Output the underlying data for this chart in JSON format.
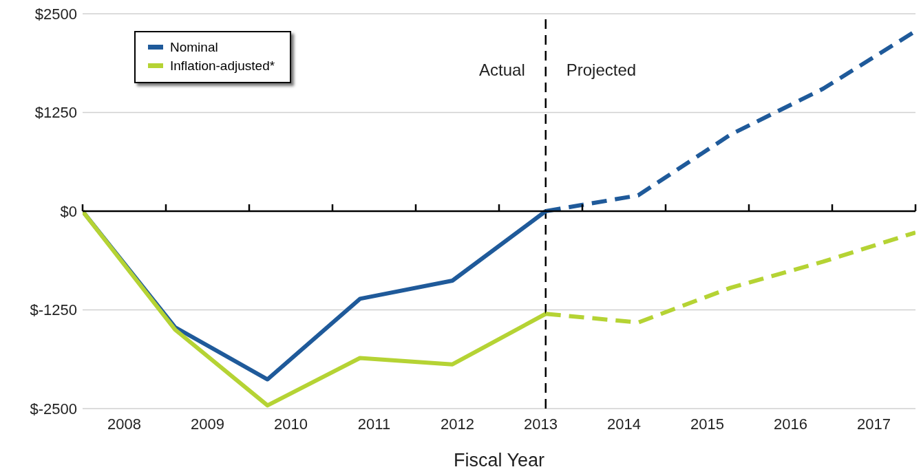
{
  "chart_data": {
    "type": "line",
    "xlabel": "Fiscal Year",
    "xlim": [
      2007.5,
      2017.5
    ],
    "xticks": [
      {
        "value": 2007.5,
        "label": null
      },
      2008,
      {
        "value": 2008.5,
        "label": null
      },
      2009,
      {
        "value": 2009.5,
        "label": null
      },
      2010,
      {
        "value": 2010.5,
        "label": null
      },
      2011,
      {
        "value": 2011.5,
        "label": null
      },
      2012,
      {
        "value": 2012.5,
        "label": null
      },
      2013,
      {
        "value": 2013.5,
        "label": null
      },
      2014,
      {
        "value": 2014.5,
        "label": null
      },
      2015,
      {
        "value": 2015.5,
        "label": null
      },
      2016,
      {
        "value": 2016.5,
        "label": null
      },
      2017,
      {
        "value": 2017.5,
        "label": null
      }
    ],
    "ylim": [
      -2500,
      2500
    ],
    "yticks": [
      {
        "value": -2500,
        "label": "$-2500"
      },
      {
        "value": -1250,
        "label": "$-1250"
      },
      {
        "value": 0,
        "label": "$0"
      },
      {
        "value": 1250,
        "label": "$1250"
      },
      {
        "value": 2500,
        "label": "$2500"
      }
    ],
    "grid": "y",
    "legend": "top left",
    "marker": "none",
    "series": [
      {
        "name": "Nominal",
        "color": "#1f5a9a",
        "line_style": "solid",
        "x": [
          2007.5,
          2008.61,
          2009.72,
          2010.83,
          2011.94,
          2013.06
        ],
        "values": [
          0,
          -1470,
          -2130,
          -1110,
          -880,
          0
        ]
      },
      {
        "color": "#1f5a9a",
        "line_style": "dashed",
        "x": [
          2013.06,
          2014.17,
          2015.28,
          2016.39,
          2017.5
        ],
        "values": [
          0,
          200,
          970,
          1550,
          2280
        ]
      },
      {
        "name": "Inflation-adjusted*",
        "color": "#b5d334",
        "line_style": "solid",
        "x": [
          2007.5,
          2008.61,
          2009.72,
          2010.83,
          2011.94,
          2013.06
        ],
        "values": [
          0,
          -1500,
          -2460,
          -1860,
          -1940,
          -1300
        ]
      },
      {
        "color": "#b5d334",
        "line_style": "dashed",
        "x": [
          2013.06,
          2014.17,
          2015.28,
          2016.39,
          2017.5
        ],
        "values": [
          -1300,
          -1410,
          -970,
          -640,
          -270
        ]
      }
    ],
    "ref_lines": [
      {
        "axis": "x",
        "value": 2013.06,
        "color": "#000000",
        "line_style": "dashed"
      }
    ],
    "annotations": [
      "Actual",
      "Projected"
    ]
  }
}
